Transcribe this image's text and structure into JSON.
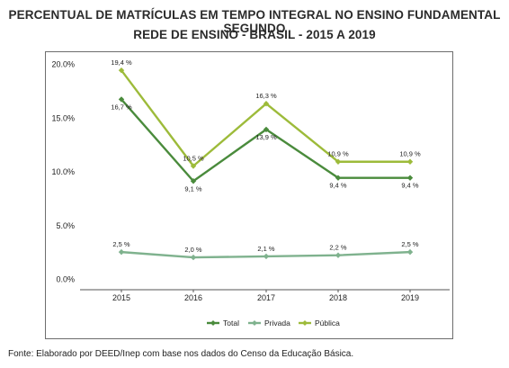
{
  "title_line1": "PERCENTUAL DE MATRÍCULAS EM TEMPO INTEGRAL NO ENSINO FUNDAMENTAL SEGUNDO",
  "title_line2": "REDE DE ENSINO - BRASIL - 2015 A 2019",
  "source": "Fonte: Elaborado por DEED/Inep com base nos dados do Censo da Educação Básica.",
  "chart_data": {
    "type": "line",
    "x": [
      "2015",
      "2016",
      "2017",
      "2018",
      "2019"
    ],
    "yticks": [
      "0.0%",
      "5.0%",
      "10.0%",
      "15.0%",
      "20.0%"
    ],
    "ylim": [
      0,
      20
    ],
    "grid": false,
    "legend_position": "bottom",
    "series": [
      {
        "name": "Total",
        "color": "#4a8b3c",
        "values": [
          16.7,
          9.1,
          13.9,
          9.4,
          9.4
        ],
        "labels": [
          "16,7 %",
          "9,1 %",
          "13,9 %",
          "9,4 %",
          "9,4 %"
        ],
        "label_side": "below"
      },
      {
        "name": "Privada",
        "color": "#7fb28e",
        "values": [
          2.5,
          2.0,
          2.1,
          2.2,
          2.5
        ],
        "labels": [
          "2,5 %",
          "2,0 %",
          "2,1 %",
          "2,2 %",
          "2,5 %"
        ],
        "label_side": "above"
      },
      {
        "name": "Pública",
        "color": "#9dbb3a",
        "values": [
          19.4,
          10.5,
          16.3,
          10.9,
          10.9
        ],
        "labels": [
          "19,4 %",
          "10,5 %",
          "16,3 %",
          "10,9 %",
          "10,9 %"
        ],
        "label_side": "above"
      }
    ]
  }
}
